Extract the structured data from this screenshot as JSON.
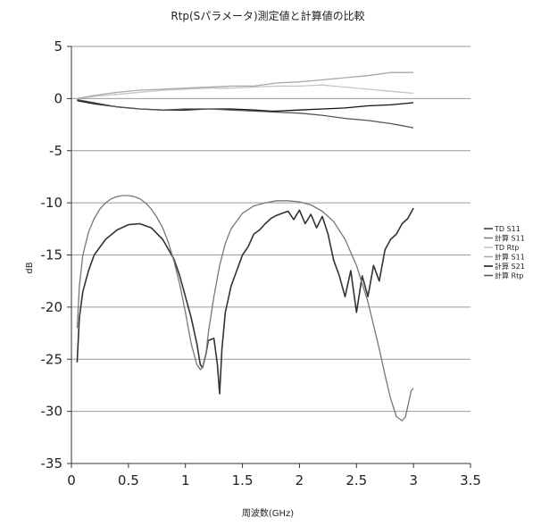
{
  "chart_data": {
    "type": "line",
    "title": "Rtp(Sパラメータ)測定値と計算値の比較",
    "xlabel": "周波数(GHz)",
    "ylabel": "dB",
    "xlim": [
      0,
      3.5
    ],
    "ylim": [
      -35,
      5
    ],
    "x_ticks": [
      0,
      0.5,
      1,
      1.5,
      2,
      2.5,
      3,
      3.5
    ],
    "x_tick_labels": [
      "0",
      "0.5",
      "1",
      "1.5",
      "2",
      "2.5",
      "3",
      "3.5"
    ],
    "y_ticks": [
      5,
      0,
      -5,
      -10,
      -15,
      -20,
      -25,
      -30,
      -35
    ],
    "y_tick_labels": [
      "5",
      "0",
      "-5",
      "-10",
      "-15",
      "-20",
      "-25",
      "-30",
      "-35"
    ],
    "grid": "horizontal",
    "legend_position": "right",
    "series": [
      {
        "name": "TD S11",
        "color": "#333333",
        "x": [
          0.05,
          0.07,
          0.1,
          0.15,
          0.2,
          0.3,
          0.4,
          0.5,
          0.6,
          0.7,
          0.8,
          0.9,
          0.95,
          1.0,
          1.05,
          1.1,
          1.13,
          1.15,
          1.18,
          1.2,
          1.25,
          1.28,
          1.3,
          1.32,
          1.35,
          1.4,
          1.45,
          1.5,
          1.55,
          1.6,
          1.65,
          1.7,
          1.75,
          1.8,
          1.85,
          1.9,
          1.95,
          2.0,
          2.05,
          2.1,
          2.15,
          2.2,
          2.25,
          2.3,
          2.35,
          2.4,
          2.45,
          2.5,
          2.55,
          2.6,
          2.65,
          2.7,
          2.75,
          2.8,
          2.85,
          2.9,
          2.95,
          3.0
        ],
        "y": [
          -25.3,
          -21.0,
          -18.5,
          -16.5,
          -15.0,
          -13.5,
          -12.6,
          -12.1,
          -12.0,
          -12.4,
          -13.5,
          -15.4,
          -17.0,
          -19.0,
          -21.0,
          -23.5,
          -25.5,
          -25.8,
          -24.5,
          -23.2,
          -23.0,
          -25.5,
          -28.3,
          -24.0,
          -20.5,
          -18.0,
          -16.5,
          -15.0,
          -14.2,
          -13.0,
          -12.6,
          -12.0,
          -11.5,
          -11.2,
          -11.0,
          -10.8,
          -11.6,
          -10.7,
          -12.0,
          -11.1,
          -12.4,
          -11.3,
          -13.0,
          -15.5,
          -17.0,
          -19.0,
          -16.5,
          -20.5,
          -17.0,
          -19.0,
          -16.0,
          -17.5,
          -14.5,
          -13.5,
          -13.0,
          -12.0,
          -11.5,
          -10.5
        ]
      },
      {
        "name": "計算 S11",
        "color": "#777777",
        "x": [
          0.05,
          0.07,
          0.1,
          0.15,
          0.2,
          0.25,
          0.3,
          0.35,
          0.4,
          0.45,
          0.5,
          0.55,
          0.6,
          0.65,
          0.7,
          0.75,
          0.8,
          0.85,
          0.9,
          0.95,
          1.0,
          1.05,
          1.1,
          1.13,
          1.15,
          1.18,
          1.2,
          1.25,
          1.3,
          1.35,
          1.4,
          1.5,
          1.6,
          1.7,
          1.8,
          1.9,
          2.0,
          2.1,
          2.2,
          2.3,
          2.4,
          2.5,
          2.6,
          2.7,
          2.75,
          2.8,
          2.85,
          2.9,
          2.93,
          2.95,
          2.98,
          3.0
        ],
        "y": [
          -22.0,
          -18.0,
          -15.0,
          -12.8,
          -11.5,
          -10.6,
          -10.0,
          -9.6,
          -9.4,
          -9.3,
          -9.3,
          -9.4,
          -9.6,
          -10.0,
          -10.6,
          -11.4,
          -12.4,
          -13.8,
          -15.6,
          -17.8,
          -20.5,
          -23.5,
          -25.5,
          -26.0,
          -25.8,
          -24.5,
          -22.5,
          -19.0,
          -16.0,
          -13.9,
          -12.5,
          -11.0,
          -10.3,
          -10.0,
          -9.8,
          -9.8,
          -9.9,
          -10.2,
          -10.8,
          -11.8,
          -13.5,
          -16.0,
          -19.5,
          -24.0,
          -26.5,
          -28.8,
          -30.5,
          -30.9,
          -30.5,
          -29.5,
          -28.0,
          -27.8
        ]
      },
      {
        "name": "TD Rtp",
        "color": "#c4c4c4",
        "x": [
          0.05,
          0.2,
          0.4,
          0.6,
          0.8,
          1.0,
          1.2,
          1.4,
          1.6,
          1.8,
          2.0,
          2.2,
          2.4,
          2.6,
          2.8,
          3.0
        ],
        "y": [
          0.0,
          0.2,
          0.4,
          0.6,
          0.8,
          0.9,
          1.0,
          1.0,
          1.1,
          1.2,
          1.2,
          1.3,
          1.1,
          0.9,
          0.7,
          0.5
        ]
      },
      {
        "name": "計算 S11",
        "color": "#a8a8a8",
        "x": [
          0.05,
          0.2,
          0.4,
          0.6,
          0.8,
          1.0,
          1.2,
          1.4,
          1.6,
          1.8,
          2.0,
          2.2,
          2.4,
          2.6,
          2.8,
          2.9,
          3.0
        ],
        "y": [
          0.0,
          0.3,
          0.6,
          0.8,
          0.9,
          1.0,
          1.1,
          1.2,
          1.2,
          1.5,
          1.6,
          1.8,
          2.0,
          2.2,
          2.5,
          2.5,
          2.5
        ]
      },
      {
        "name": "計算 S21",
        "color": "#111111",
        "x": [
          0.05,
          0.2,
          0.4,
          0.6,
          0.8,
          1.0,
          1.2,
          1.4,
          1.6,
          1.75,
          1.8,
          2.0,
          2.2,
          2.4,
          2.6,
          2.8,
          3.0
        ],
        "y": [
          -0.2,
          -0.5,
          -0.8,
          -1.0,
          -1.1,
          -1.1,
          -1.0,
          -1.0,
          -1.1,
          -1.2,
          -1.2,
          -1.1,
          -1.0,
          -0.9,
          -0.7,
          -0.6,
          -0.4
        ]
      },
      {
        "name": "計算 Rtp",
        "color": "#555555",
        "x": [
          0.05,
          0.2,
          0.4,
          0.6,
          0.8,
          1.0,
          1.2,
          1.4,
          1.6,
          1.8,
          2.0,
          2.2,
          2.4,
          2.6,
          2.8,
          2.9,
          3.0
        ],
        "y": [
          -0.1,
          -0.4,
          -0.8,
          -1.0,
          -1.1,
          -1.0,
          -1.0,
          -1.1,
          -1.2,
          -1.3,
          -1.4,
          -1.6,
          -1.9,
          -2.1,
          -2.4,
          -2.6,
          -2.8
        ]
      }
    ]
  }
}
